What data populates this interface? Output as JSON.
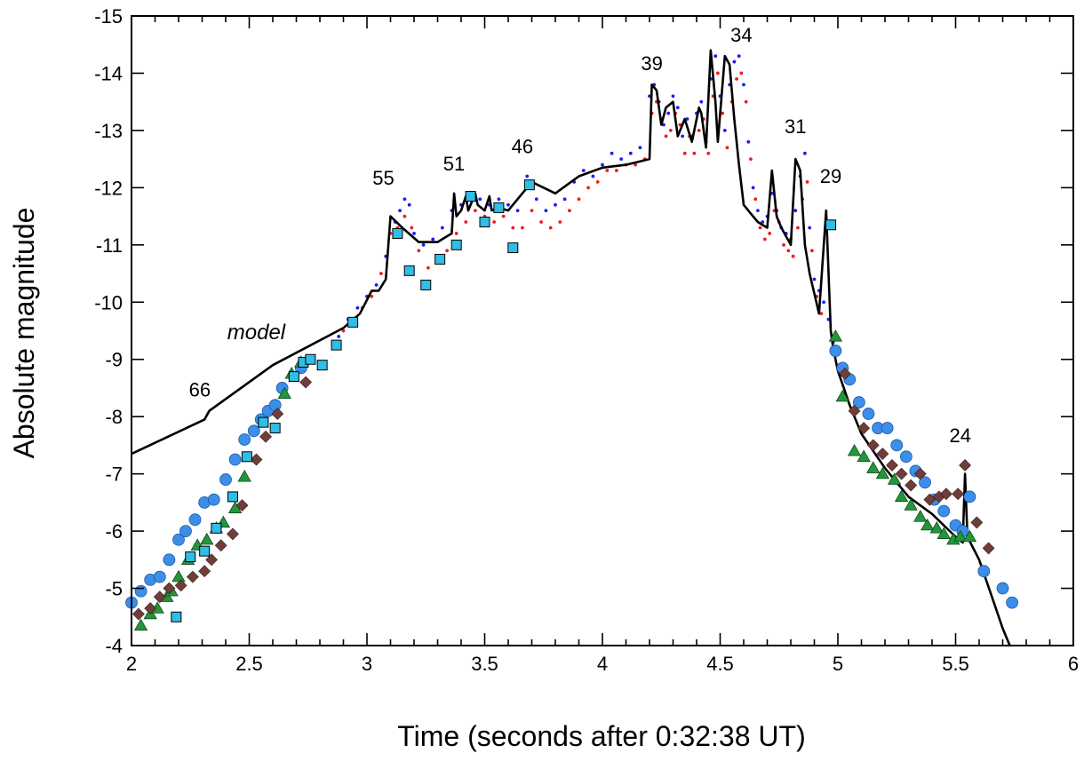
{
  "chart_data": {
    "type": "scatter",
    "title": "",
    "xlabel": "Time (seconds after 0:32:38 UT)",
    "ylabel": "Absolute magnitude",
    "xlim": [
      2,
      6
    ],
    "ylim": [
      -4,
      -15
    ],
    "y_inverted": true,
    "grid": false,
    "x_ticks": [
      "2",
      "2.5",
      "3",
      "3.5",
      "4",
      "4.5",
      "5",
      "5.5",
      "6"
    ],
    "y_ticks": [
      "-4",
      "-5",
      "-6",
      "-7",
      "-8",
      "-9",
      "-10",
      "-11",
      "-12",
      "-13",
      "-14",
      "-15"
    ],
    "annotations": [
      {
        "text": "model",
        "x": 2.53,
        "y": -9.35,
        "italic": true
      },
      {
        "text": "66",
        "x": 2.29,
        "y": -8.35
      },
      {
        "text": "55",
        "x": 3.07,
        "y": -12.05
      },
      {
        "text": "51",
        "x": 3.37,
        "y": -12.3
      },
      {
        "text": "46",
        "x": 3.66,
        "y": -12.6
      },
      {
        "text": "39",
        "x": 4.21,
        "y": -14.05
      },
      {
        "text": "34",
        "x": 4.59,
        "y": -14.55
      },
      {
        "text": "31",
        "x": 4.82,
        "y": -12.95
      },
      {
        "text": "29",
        "x": 4.97,
        "y": -12.08
      },
      {
        "text": "24",
        "x": 5.52,
        "y": -7.55
      }
    ],
    "series": [
      {
        "marker": "line",
        "color": "#000000",
        "x": [
          2.0,
          2.31,
          2.33,
          2.6,
          2.9,
          2.97,
          3.02,
          3.05,
          3.08,
          3.1,
          3.15,
          3.22,
          3.3,
          3.36,
          3.37,
          3.38,
          3.4,
          3.42,
          3.43,
          3.46,
          3.47,
          3.5,
          3.52,
          3.53,
          3.56,
          3.6,
          3.7,
          3.8,
          3.9,
          4.0,
          4.1,
          4.15,
          4.2,
          4.21,
          4.23,
          4.25,
          4.27,
          4.3,
          4.32,
          4.35,
          4.38,
          4.41,
          4.42,
          4.44,
          4.46,
          4.48,
          4.49,
          4.52,
          4.54,
          4.56,
          4.58,
          4.6,
          4.63,
          4.66,
          4.7,
          4.72,
          4.74,
          4.76,
          4.8,
          4.82,
          4.84,
          4.86,
          4.88,
          4.92,
          4.95,
          4.97,
          4.98,
          5.0,
          5.05,
          5.1,
          5.2,
          5.3,
          5.4,
          5.5,
          5.53,
          5.54,
          5.55,
          5.6,
          5.65,
          5.7,
          5.73
        ],
        "y": [
          -7.35,
          -7.95,
          -8.1,
          -8.9,
          -9.55,
          -9.8,
          -10.2,
          -10.2,
          -10.4,
          -11.5,
          -11.3,
          -11.05,
          -11.05,
          -11.2,
          -11.9,
          -11.5,
          -11.6,
          -11.85,
          -11.6,
          -11.9,
          -11.7,
          -11.6,
          -11.85,
          -11.6,
          -11.65,
          -11.6,
          -12.1,
          -11.9,
          -12.2,
          -12.35,
          -12.4,
          -12.45,
          -12.5,
          -13.8,
          -13.7,
          -13.1,
          -13.4,
          -13.5,
          -12.9,
          -13.2,
          -12.8,
          -13.4,
          -13.3,
          -12.7,
          -14.4,
          -13.5,
          -12.8,
          -14.3,
          -14.15,
          -13.2,
          -12.4,
          -11.7,
          -11.55,
          -11.4,
          -11.3,
          -12.3,
          -11.5,
          -11.3,
          -11.0,
          -12.5,
          -12.3,
          -11.0,
          -10.5,
          -9.8,
          -11.6,
          -9.5,
          -9.2,
          -8.8,
          -8.2,
          -7.7,
          -7.1,
          -6.6,
          -6.3,
          -5.9,
          -5.8,
          -7.0,
          -5.9,
          -5.5,
          -4.9,
          -4.3,
          -4.0
        ]
      },
      {
        "marker": "circle",
        "color": "#3d8ee8",
        "x": [
          2.0,
          2.04,
          2.08,
          2.12,
          2.16,
          2.2,
          2.23,
          2.27,
          2.31,
          2.35,
          2.4,
          2.44,
          2.48,
          2.52,
          2.55,
          2.58,
          2.61,
          2.64,
          2.72,
          4.99,
          5.02,
          5.05,
          5.09,
          5.13,
          5.17,
          5.21,
          5.25,
          5.29,
          5.33,
          5.37,
          5.41,
          5.45,
          5.5,
          5.53,
          5.56,
          5.62,
          5.7,
          5.74
        ],
        "y": [
          -4.75,
          -4.95,
          -5.15,
          -5.2,
          -5.5,
          -5.85,
          -6.0,
          -6.2,
          -6.5,
          -6.55,
          -6.9,
          -7.25,
          -7.6,
          -7.75,
          -7.95,
          -8.1,
          -8.2,
          -8.5,
          -8.85,
          -9.15,
          -8.85,
          -8.65,
          -8.25,
          -8.05,
          -7.8,
          -7.8,
          -7.5,
          -7.3,
          -7.05,
          -6.85,
          -6.55,
          -6.35,
          -6.1,
          -6.0,
          -6.6,
          -5.3,
          -5.0,
          -4.75
        ]
      },
      {
        "marker": "triangle",
        "color": "#23963c",
        "x": [
          2.04,
          2.08,
          2.11,
          2.15,
          2.17,
          2.2,
          2.24,
          2.28,
          2.32,
          2.36,
          2.39,
          2.44,
          2.48,
          2.65,
          2.68,
          2.72,
          4.99,
          5.02,
          5.07,
          5.11,
          5.15,
          5.19,
          5.24,
          5.27,
          5.31,
          5.35,
          5.38,
          5.42,
          5.45,
          5.49,
          5.52,
          5.56
        ],
        "y": [
          -4.35,
          -4.55,
          -4.65,
          -4.85,
          -4.95,
          -5.2,
          -5.5,
          -5.75,
          -5.85,
          -6.05,
          -6.15,
          -6.4,
          -6.95,
          -8.4,
          -8.75,
          -8.95,
          -9.4,
          -8.35,
          -7.4,
          -7.3,
          -7.1,
          -7.0,
          -6.9,
          -6.6,
          -6.45,
          -6.25,
          -6.1,
          -6.05,
          -5.95,
          -5.85,
          -5.9,
          -5.9
        ]
      },
      {
        "marker": "diamond",
        "color": "#6e3e3a",
        "x": [
          2.03,
          2.08,
          2.12,
          2.16,
          2.21,
          2.26,
          2.31,
          2.34,
          2.38,
          2.43,
          2.47,
          2.53,
          2.57,
          2.62,
          2.74,
          5.03,
          5.07,
          5.11,
          5.15,
          5.19,
          5.23,
          5.27,
          5.31,
          5.35,
          5.39,
          5.43,
          5.46,
          5.51,
          5.54,
          5.59,
          5.64
        ],
        "y": [
          -4.55,
          -4.65,
          -4.85,
          -5.0,
          -5.05,
          -5.2,
          -5.3,
          -5.5,
          -5.75,
          -5.95,
          -6.45,
          -7.25,
          -7.65,
          -8.05,
          -8.6,
          -8.75,
          -8.1,
          -7.8,
          -7.5,
          -7.35,
          -7.15,
          -7.0,
          -6.8,
          -7.0,
          -6.55,
          -6.6,
          -6.65,
          -6.65,
          -7.15,
          -6.15,
          -5.7
        ]
      },
      {
        "marker": "square",
        "color": "#30bde6",
        "x": [
          2.19,
          2.25,
          2.31,
          2.36,
          2.43,
          2.49,
          2.56,
          2.61,
          2.69,
          2.73,
          2.76,
          2.81,
          2.87,
          2.94,
          3.13,
          3.18,
          3.25,
          3.31,
          3.38,
          3.44,
          3.5,
          3.56,
          3.62,
          3.69,
          4.97
        ],
        "y": [
          -4.5,
          -5.55,
          -5.65,
          -6.05,
          -6.6,
          -7.3,
          -7.9,
          -7.8,
          -8.7,
          -8.95,
          -9.0,
          -8.9,
          -9.25,
          -9.65,
          -11.2,
          -10.55,
          -10.3,
          -10.75,
          -11.0,
          -11.85,
          -11.4,
          -11.65,
          -10.95,
          -12.05,
          -11.35
        ]
      },
      {
        "marker": "dot",
        "color": "#1c1cf0",
        "x": [
          2.88,
          2.92,
          2.96,
          3.0,
          3.04,
          3.08,
          3.12,
          3.14,
          3.16,
          3.18,
          3.2,
          3.24,
          3.28,
          3.32,
          3.36,
          3.4,
          3.44,
          3.48,
          3.52,
          3.56,
          3.6,
          3.64,
          3.68,
          3.72,
          3.76,
          3.8,
          3.84,
          3.88,
          3.92,
          3.96,
          4.0,
          4.04,
          4.08,
          4.12,
          4.16,
          4.2,
          4.22,
          4.24,
          4.26,
          4.28,
          4.3,
          4.32,
          4.34,
          4.36,
          4.38,
          4.4,
          4.42,
          4.44,
          4.46,
          4.48,
          4.5,
          4.52,
          4.54,
          4.56,
          4.58,
          4.6,
          4.62,
          4.64,
          4.66,
          4.68,
          4.7,
          4.72,
          4.74,
          4.76,
          4.78,
          4.8,
          4.82,
          4.84,
          4.86,
          4.88,
          4.9,
          4.92,
          4.94,
          4.96,
          4.98
        ],
        "y": [
          -9.4,
          -9.7,
          -9.9,
          -10.1,
          -10.3,
          -10.8,
          -11.4,
          -11.6,
          -11.8,
          -11.7,
          -11.2,
          -11.0,
          -11.1,
          -11.3,
          -11.6,
          -11.7,
          -11.9,
          -11.8,
          -11.7,
          -11.8,
          -11.7,
          -11.6,
          -12.2,
          -11.8,
          -11.6,
          -11.7,
          -11.8,
          -12.1,
          -12.3,
          -12.2,
          -12.4,
          -12.6,
          -12.5,
          -12.6,
          -12.7,
          -13.6,
          -13.8,
          -13.5,
          -13.1,
          -13.3,
          -13.6,
          -13.4,
          -12.9,
          -13.2,
          -12.9,
          -13.3,
          -13.5,
          -12.8,
          -13.9,
          -14.3,
          -13.6,
          -13.0,
          -13.8,
          -14.2,
          -14.3,
          -13.8,
          -12.8,
          -12.0,
          -11.6,
          -11.4,
          -11.5,
          -11.9,
          -11.6,
          -11.3,
          -11.2,
          -11.1,
          -11.6,
          -12.2,
          -12.6,
          -11.3,
          -10.4,
          -10.2,
          -10.0,
          -9.7,
          -9.3
        ]
      },
      {
        "marker": "dot",
        "color": "#f01c1c",
        "x": [
          2.86,
          2.9,
          2.94,
          2.98,
          3.02,
          3.06,
          3.1,
          3.13,
          3.16,
          3.19,
          3.22,
          3.26,
          3.3,
          3.34,
          3.38,
          3.42,
          3.46,
          3.5,
          3.54,
          3.58,
          3.62,
          3.66,
          3.7,
          3.74,
          3.78,
          3.82,
          3.86,
          3.9,
          3.94,
          3.98,
          4.02,
          4.06,
          4.1,
          4.14,
          4.18,
          4.21,
          4.23,
          4.25,
          4.27,
          4.29,
          4.31,
          4.33,
          4.35,
          4.37,
          4.39,
          4.41,
          4.43,
          4.45,
          4.47,
          4.49,
          4.51,
          4.53,
          4.55,
          4.57,
          4.59,
          4.61,
          4.63,
          4.65,
          4.67,
          4.69,
          4.71,
          4.73,
          4.75,
          4.77,
          4.79,
          4.81,
          4.83,
          4.85,
          4.87,
          4.89,
          4.91,
          4.93
        ],
        "y": [
          -9.2,
          -9.5,
          -9.6,
          -9.9,
          -10.1,
          -10.5,
          -11.2,
          -11.3,
          -11.5,
          -11.3,
          -10.9,
          -10.6,
          -10.7,
          -10.9,
          -11.2,
          -11.4,
          -11.6,
          -11.5,
          -11.4,
          -11.5,
          -11.3,
          -11.3,
          -11.6,
          -11.4,
          -11.3,
          -11.4,
          -11.6,
          -11.8,
          -12.0,
          -12.1,
          -12.3,
          -12.3,
          -12.4,
          -12.4,
          -12.5,
          -13.3,
          -13.5,
          -13.2,
          -12.9,
          -13.0,
          -13.3,
          -13.1,
          -12.6,
          -12.9,
          -12.6,
          -13.0,
          -13.2,
          -12.6,
          -13.6,
          -14.0,
          -13.3,
          -12.7,
          -13.5,
          -13.9,
          -14.0,
          -13.5,
          -12.5,
          -11.8,
          -11.3,
          -11.1,
          -11.2,
          -11.6,
          -11.4,
          -11.0,
          -10.9,
          -10.8,
          -11.3,
          -11.8,
          -12.1,
          -10.9,
          -10.1,
          -9.8
        ]
      }
    ]
  }
}
